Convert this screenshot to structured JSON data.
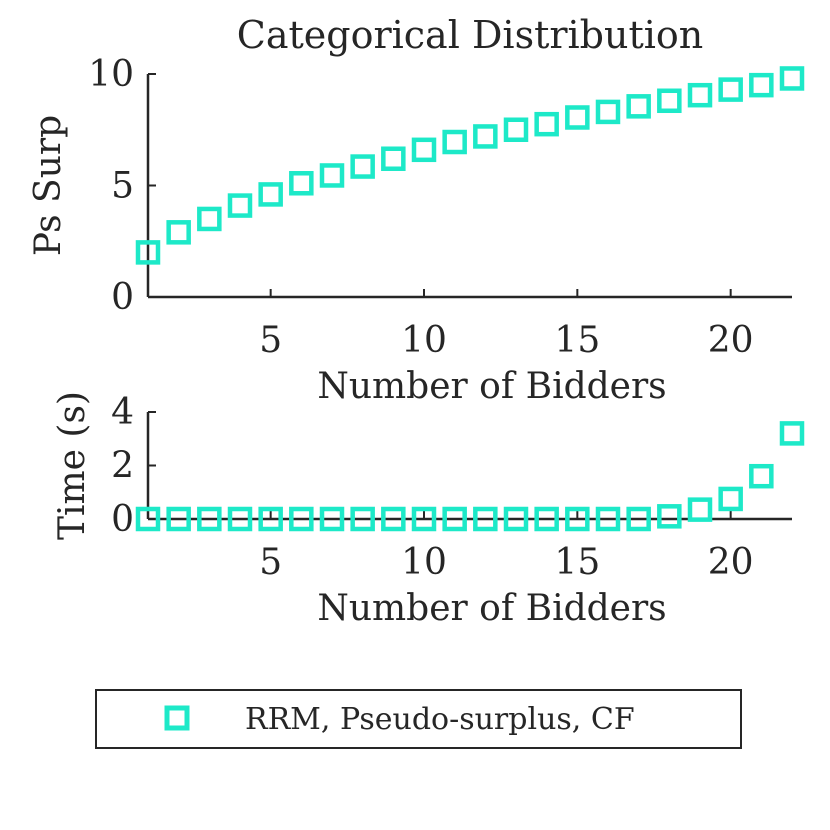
{
  "colors": {
    "marker": "#1de9c8",
    "axis": "#262626",
    "background": "#ffffff"
  },
  "chart_data": [
    {
      "type": "scatter",
      "title": "Categorical Distribution",
      "xlabel": "Number of Bidders",
      "ylabel": "Ps Surp",
      "xlim": [
        1,
        22
      ],
      "ylim": [
        0,
        10
      ],
      "xticks": [
        5,
        10,
        15,
        20
      ],
      "yticks": [
        0,
        5,
        10
      ],
      "grid": false,
      "series": [
        {
          "name": "RRM, Pseudo-surplus, CF",
          "marker": "square",
          "x": [
            1,
            2,
            3,
            4,
            5,
            6,
            7,
            8,
            9,
            10,
            11,
            12,
            13,
            14,
            15,
            16,
            17,
            18,
            19,
            20,
            21,
            22
          ],
          "y": [
            2.0,
            2.9,
            3.5,
            4.1,
            4.6,
            5.1,
            5.45,
            5.85,
            6.2,
            6.6,
            6.95,
            7.2,
            7.5,
            7.75,
            8.05,
            8.3,
            8.55,
            8.8,
            9.05,
            9.3,
            9.5,
            9.8
          ]
        }
      ]
    },
    {
      "type": "scatter",
      "title": "",
      "xlabel": "Number of Bidders",
      "ylabel": "Time (s)",
      "xlim": [
        1,
        22
      ],
      "ylim": [
        0,
        4
      ],
      "xticks": [
        5,
        10,
        15,
        20
      ],
      "yticks": [
        0,
        2,
        4
      ],
      "grid": false,
      "series": [
        {
          "name": "RRM, Pseudo-surplus, CF",
          "marker": "square",
          "x": [
            1,
            2,
            3,
            4,
            5,
            6,
            7,
            8,
            9,
            10,
            11,
            12,
            13,
            14,
            15,
            16,
            17,
            18,
            19,
            20,
            21,
            22
          ],
          "y": [
            0,
            0,
            0,
            0,
            0,
            0,
            0,
            0,
            0,
            0,
            0,
            0,
            0,
            0,
            0,
            0,
            0,
            0.1,
            0.35,
            0.75,
            1.6,
            3.2
          ]
        }
      ]
    }
  ],
  "legend": {
    "position": "bottom",
    "entries": [
      "RRM, Pseudo-surplus, CF"
    ]
  }
}
